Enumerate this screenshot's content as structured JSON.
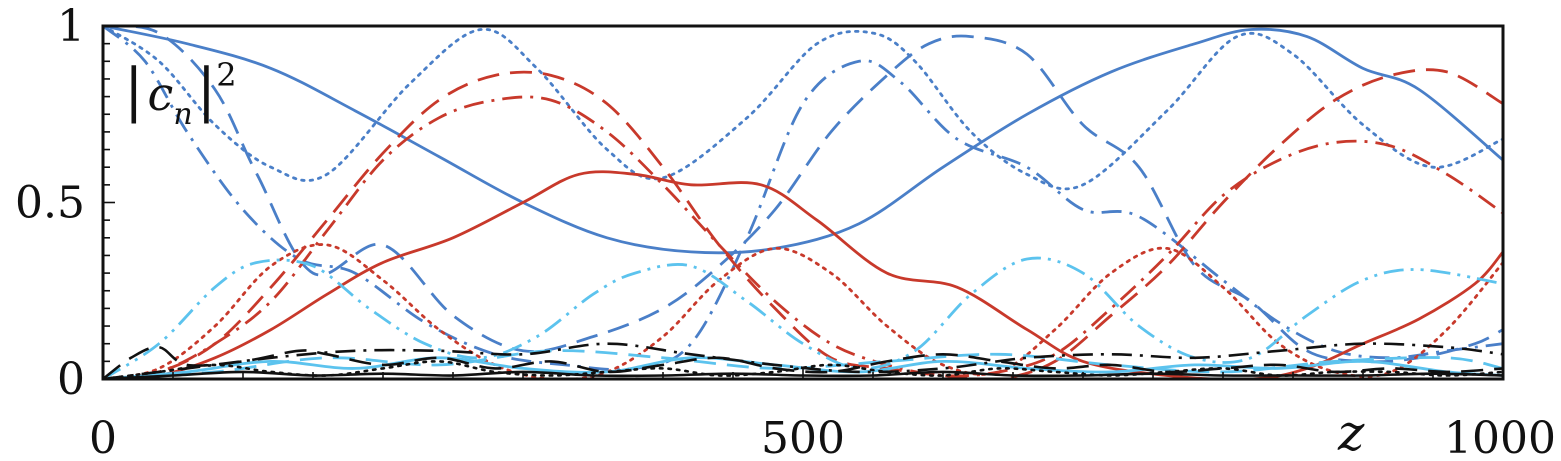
{
  "chart_data": {
    "type": "line",
    "xlabel": "z",
    "ylabel": "|c_n|²",
    "ylabel_parts": {
      "bar_left": "|",
      "base": "c",
      "sub": "n",
      "bar_right": "|",
      "sup": "2"
    },
    "xlim": [
      0,
      1000
    ],
    "ylim": [
      0,
      1
    ],
    "x_ticks": [
      0,
      500,
      1000
    ],
    "x_tick_labels": [
      "0",
      "500",
      "1000"
    ],
    "y_ticks": [
      0,
      0.5,
      1
    ],
    "y_tick_labels": [
      "0",
      "0.5",
      "1"
    ],
    "grid": false,
    "legend": "none",
    "colors": {
      "blue": "#4a7fc8",
      "red": "#c8392b",
      "light_blue": "#5cc3ee",
      "black": "#111111"
    },
    "series": [
      {
        "color": "blue",
        "style": "solid",
        "x": [
          0,
          60,
          120,
          180,
          240,
          300,
          360,
          420,
          480,
          540,
          600,
          660,
          720,
          780,
          820,
          860,
          900,
          940,
          1000
        ],
        "y": [
          1.0,
          0.95,
          0.88,
          0.76,
          0.63,
          0.5,
          0.4,
          0.36,
          0.37,
          0.44,
          0.6,
          0.75,
          0.87,
          0.95,
          0.99,
          0.97,
          0.88,
          0.82,
          0.62
        ]
      },
      {
        "color": "blue",
        "style": "dotted",
        "x": [
          0,
          40,
          80,
          120,
          160,
          220,
          270,
          310,
          360,
          400,
          460,
          510,
          550,
          580,
          620,
          660,
          700,
          760,
          810,
          850,
          900,
          950,
          1000
        ],
        "y": [
          1.0,
          0.9,
          0.72,
          0.6,
          0.58,
          0.84,
          0.99,
          0.88,
          0.65,
          0.57,
          0.74,
          0.95,
          0.98,
          0.9,
          0.7,
          0.58,
          0.55,
          0.76,
          0.97,
          0.92,
          0.72,
          0.6,
          0.68
        ]
      },
      {
        "color": "blue",
        "style": "dashed",
        "x": [
          0,
          40,
          80,
          110,
          150,
          200,
          250,
          300,
          350,
          400,
          440,
          480,
          520,
          560,
          590,
          620,
          660,
          700,
          740,
          780,
          820,
          860,
          900,
          940,
          980,
          1000
        ],
        "y": [
          1.0,
          0.98,
          0.82,
          0.58,
          0.3,
          0.38,
          0.18,
          0.08,
          0.12,
          0.2,
          0.32,
          0.48,
          0.7,
          0.86,
          0.95,
          0.97,
          0.92,
          0.72,
          0.6,
          0.32,
          0.22,
          0.08,
          0.05,
          0.06,
          0.1,
          0.14
        ]
      },
      {
        "color": "blue",
        "style": "dashdot",
        "x": [
          0,
          30,
          60,
          100,
          140,
          180,
          230,
          280,
          330,
          380,
          420,
          460,
          500,
          540,
          570,
          610,
          660,
          700,
          740,
          800,
          840,
          880,
          920,
          960,
          1000
        ],
        "y": [
          1.0,
          0.9,
          0.7,
          0.48,
          0.34,
          0.3,
          0.16,
          0.07,
          0.04,
          0.03,
          0.1,
          0.4,
          0.78,
          0.9,
          0.84,
          0.68,
          0.6,
          0.48,
          0.46,
          0.28,
          0.16,
          0.08,
          0.06,
          0.08,
          0.1
        ]
      },
      {
        "color": "red",
        "style": "solid",
        "x": [
          0,
          40,
          80,
          120,
          160,
          200,
          250,
          300,
          340,
          380,
          420,
          470,
          510,
          560,
          610,
          660,
          700,
          760,
          820,
          860,
          900,
          940,
          980,
          1000
        ],
        "y": [
          0.0,
          0.01,
          0.06,
          0.14,
          0.24,
          0.33,
          0.4,
          0.5,
          0.58,
          0.58,
          0.55,
          0.55,
          0.45,
          0.3,
          0.26,
          0.14,
          0.05,
          0.01,
          0.0,
          0.03,
          0.1,
          0.17,
          0.27,
          0.36
        ]
      },
      {
        "color": "red",
        "style": "dashed",
        "x": [
          0,
          40,
          80,
          120,
          160,
          200,
          240,
          280,
          320,
          360,
          400,
          440,
          480,
          520,
          560,
          600,
          640,
          680,
          720,
          760,
          800,
          840,
          880,
          920,
          960,
          1000
        ],
        "y": [
          0.0,
          0.02,
          0.1,
          0.26,
          0.45,
          0.64,
          0.79,
          0.86,
          0.86,
          0.78,
          0.6,
          0.38,
          0.2,
          0.06,
          0.03,
          0.01,
          0.0,
          0.05,
          0.18,
          0.32,
          0.5,
          0.66,
          0.79,
          0.86,
          0.87,
          0.78
        ]
      },
      {
        "color": "red",
        "style": "dashdot",
        "x": [
          0,
          40,
          80,
          120,
          160,
          200,
          240,
          280,
          320,
          360,
          400,
          440,
          480,
          520,
          560,
          600,
          640,
          680,
          720,
          760,
          800,
          840,
          880,
          920,
          960,
          1000
        ],
        "y": [
          0.0,
          0.02,
          0.1,
          0.22,
          0.42,
          0.62,
          0.74,
          0.79,
          0.79,
          0.7,
          0.55,
          0.38,
          0.22,
          0.1,
          0.04,
          0.01,
          0.02,
          0.07,
          0.2,
          0.35,
          0.52,
          0.62,
          0.67,
          0.66,
          0.58,
          0.47
        ]
      },
      {
        "color": "red",
        "style": "dotted",
        "x": [
          0,
          40,
          80,
          120,
          160,
          200,
          240,
          280,
          320,
          360,
          400,
          440,
          480,
          520,
          560,
          600,
          640,
          680,
          720,
          760,
          800,
          840,
          880,
          920,
          960,
          1000
        ],
        "y": [
          0.0,
          0.03,
          0.15,
          0.32,
          0.38,
          0.28,
          0.14,
          0.04,
          0.0,
          0.02,
          0.12,
          0.28,
          0.37,
          0.3,
          0.15,
          0.04,
          0.02,
          0.14,
          0.3,
          0.37,
          0.26,
          0.1,
          0.02,
          0.02,
          0.14,
          0.33
        ]
      },
      {
        "color": "light_blue",
        "style": "dashdotdot",
        "x": [
          0,
          40,
          80,
          110,
          150,
          190,
          230,
          270,
          310,
          350,
          380,
          420,
          460,
          500,
          540,
          580,
          620,
          660,
          700,
          740,
          780,
          820,
          860,
          900,
          940,
          1000
        ],
        "y": [
          0.0,
          0.1,
          0.26,
          0.33,
          0.32,
          0.2,
          0.1,
          0.06,
          0.12,
          0.24,
          0.3,
          0.32,
          0.22,
          0.1,
          0.03,
          0.08,
          0.24,
          0.34,
          0.3,
          0.15,
          0.06,
          0.06,
          0.18,
          0.28,
          0.31,
          0.27
        ]
      },
      {
        "color": "light_blue",
        "style": "dashed",
        "x": [
          0,
          80,
          160,
          240,
          320,
          400,
          480,
          560,
          640,
          720,
          800,
          880,
          960,
          1000
        ],
        "y": [
          0.0,
          0.02,
          0.06,
          0.04,
          0.08,
          0.06,
          0.03,
          0.05,
          0.07,
          0.04,
          0.02,
          0.05,
          0.06,
          0.03
        ]
      },
      {
        "color": "light_blue",
        "style": "solid",
        "x": [
          0,
          60,
          120,
          180,
          240,
          300,
          360,
          420,
          480,
          540,
          600,
          660,
          720,
          780,
          840,
          900,
          960,
          1000
        ],
        "y": [
          0.0,
          0.02,
          0.05,
          0.03,
          0.06,
          0.03,
          0.02,
          0.06,
          0.04,
          0.02,
          0.05,
          0.03,
          0.02,
          0.04,
          0.03,
          0.05,
          0.02,
          0.01
        ]
      },
      {
        "color": "black",
        "style": "dashdot",
        "x": [
          0,
          60,
          120,
          180,
          240,
          300,
          360,
          420,
          480,
          540,
          600,
          660,
          720,
          780,
          840,
          900,
          960,
          1000
        ],
        "y": [
          0.0,
          0.03,
          0.06,
          0.08,
          0.08,
          0.07,
          0.1,
          0.07,
          0.04,
          0.02,
          0.03,
          0.06,
          0.07,
          0.06,
          0.08,
          0.1,
          0.09,
          0.07
        ]
      },
      {
        "color": "black",
        "style": "dashed",
        "x": [
          0,
          20,
          40,
          60,
          100,
          140,
          160,
          200,
          240,
          280,
          320,
          360,
          400,
          440,
          480,
          520,
          560,
          600,
          640,
          680,
          720,
          760,
          800,
          840,
          880,
          920,
          960,
          1000
        ],
        "y": [
          0.0,
          0.06,
          0.09,
          0.04,
          0.05,
          0.08,
          0.07,
          0.04,
          0.06,
          0.03,
          0.05,
          0.02,
          0.04,
          0.06,
          0.03,
          0.02,
          0.05,
          0.07,
          0.05,
          0.03,
          0.04,
          0.02,
          0.03,
          0.04,
          0.02,
          0.03,
          0.02,
          0.03
        ]
      },
      {
        "color": "black",
        "style": "dotted",
        "x": [
          0,
          40,
          80,
          120,
          160,
          200,
          240,
          280,
          320,
          360,
          400,
          440,
          480,
          520,
          560,
          600,
          640,
          680,
          720,
          760,
          800,
          840,
          880,
          920,
          960,
          1000
        ],
        "y": [
          0.0,
          0.02,
          0.04,
          0.02,
          0.01,
          0.03,
          0.05,
          0.02,
          0.01,
          0.02,
          0.03,
          0.01,
          0.02,
          0.04,
          0.02,
          0.01,
          0.03,
          0.02,
          0.01,
          0.02,
          0.03,
          0.01,
          0.02,
          0.02,
          0.01,
          0.02
        ]
      },
      {
        "color": "black",
        "style": "solid",
        "x": [
          0,
          50,
          100,
          150,
          200,
          250,
          300,
          350,
          400,
          450,
          500,
          550,
          600,
          650,
          700,
          750,
          800,
          850,
          900,
          950,
          1000
        ],
        "y": [
          0.0,
          0.01,
          0.02,
          0.01,
          0.015,
          0.01,
          0.02,
          0.01,
          0.01,
          0.015,
          0.01,
          0.01,
          0.02,
          0.01,
          0.01,
          0.015,
          0.01,
          0.01,
          0.01,
          0.015,
          0.01
        ]
      }
    ]
  }
}
